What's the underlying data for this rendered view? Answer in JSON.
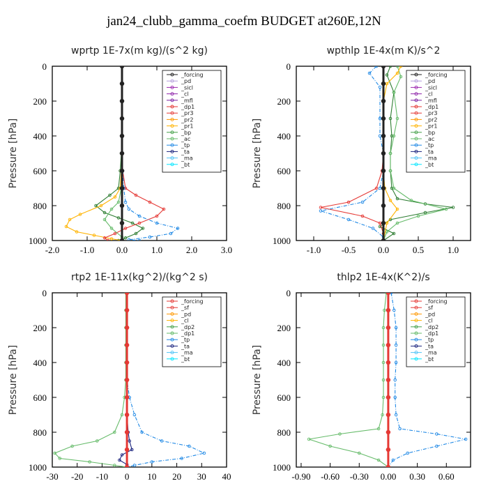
{
  "page_title": "jan24_clubb_gamma_coefm  BUDGET at260E,12N",
  "chart_data": [
    {
      "type": "line",
      "title": "wprtp  1E-7x(m kg)/(s^2 kg)",
      "ylabel": "Pressure [hPa]",
      "ylim": [
        1000,
        0
      ],
      "xlim": [
        -2.0,
        3.0
      ],
      "yticks": [
        "0",
        "200",
        "400",
        "600",
        "800",
        "1000"
      ],
      "xticks": [
        "-2.0",
        "-1.0",
        "0.0",
        "1.0",
        "2.0",
        "3.0"
      ],
      "legend": [
        "_forcing",
        "_pd",
        "_sicl",
        "_cl",
        "_mfl",
        "_dp1",
        "_pr3",
        "_pr2",
        "_pr1",
        "_bp",
        "_ac",
        "_tp",
        "_ta",
        "_ma",
        "_bt"
      ],
      "legend_colors": [
        "#222222",
        "#b39ddb",
        "#9c27b0",
        "#8e24aa",
        "#7b1fa2",
        "#e53935",
        "#e53935",
        "#ff9800",
        "#ffb300",
        "#43a047",
        "#66bb6a",
        "#1e88e5",
        "#1a237e",
        "#4fc3f7",
        "#00e5ff"
      ],
      "series": [
        {
          "name": "_bp",
          "color": "#2e7d32",
          "x": [
            0,
            0,
            0,
            0,
            0,
            -0.02,
            -0.05,
            -0.1,
            -0.35,
            -0.75,
            -0.5,
            -0.1,
            0.3,
            0.6,
            0.4,
            0.1,
            -0.1
          ],
          "y": [
            0,
            100,
            200,
            300,
            400,
            500,
            600,
            700,
            740,
            800,
            840,
            870,
            900,
            930,
            960,
            985,
            1000
          ]
        },
        {
          "name": "_pr1",
          "color": "#ffb300",
          "x": [
            0,
            0,
            0,
            0,
            0,
            0,
            -0.02,
            -0.05,
            -0.2,
            -0.6,
            -1.2,
            -1.5,
            -1.6,
            -1.3,
            -0.8,
            -0.3,
            0
          ],
          "y": [
            0,
            100,
            200,
            300,
            400,
            500,
            600,
            700,
            750,
            800,
            850,
            880,
            920,
            950,
            970,
            990,
            1000
          ]
        },
        {
          "name": "_dp1",
          "color": "#e53935",
          "x": [
            0,
            0,
            0,
            0,
            0,
            0,
            0.02,
            0.1,
            0.4,
            0.8,
            1.2,
            1.0,
            0.5,
            0.1,
            -0.2,
            -0.5,
            -0.4
          ],
          "y": [
            0,
            100,
            200,
            300,
            400,
            500,
            600,
            700,
            740,
            780,
            820,
            860,
            900,
            930,
            960,
            985,
            1000
          ]
        },
        {
          "name": "_tp",
          "color": "#1e88e5",
          "x": [
            0,
            0,
            0,
            0,
            0,
            0,
            0.02,
            0.05,
            0.1,
            0.2,
            0.5,
            1.0,
            1.6,
            1.4,
            0.8,
            0.2,
            0.5
          ],
          "y": [
            0,
            100,
            200,
            300,
            400,
            500,
            600,
            700,
            780,
            820,
            860,
            900,
            930,
            960,
            980,
            995,
            1000
          ]
        },
        {
          "name": "_ac",
          "color": "#66bb6a",
          "x": [
            0,
            0,
            0,
            0,
            0,
            0,
            0,
            -0.02,
            -0.1,
            -0.3,
            -0.5,
            -0.3,
            0,
            0
          ],
          "y": [
            0,
            100,
            200,
            300,
            400,
            500,
            600,
            700,
            780,
            820,
            880,
            930,
            980,
            1000
          ]
        },
        {
          "name": "_forcing",
          "color": "#222222",
          "x": [
            0,
            0,
            0,
            0,
            0,
            0,
            0,
            0,
            0,
            0,
            0
          ],
          "y": [
            0,
            100,
            200,
            300,
            400,
            500,
            600,
            700,
            800,
            900,
            1000
          ]
        }
      ]
    },
    {
      "type": "line",
      "title": "wpthlp  1E-4x(m K)/s^2",
      "ylabel": "Pressure [hPa]",
      "ylim": [
        1000,
        0
      ],
      "xlim": [
        -1.25,
        1.25
      ],
      "yticks": [
        "0",
        "200",
        "400",
        "600",
        "800",
        "1000"
      ],
      "xticks": [
        "-1.0",
        "-0.5",
        "0.0",
        "0.5",
        "1.0"
      ],
      "legend": [
        "_forcing",
        "_pd",
        "_sicl",
        "_cl",
        "_mfl",
        "_dp1",
        "_pr3",
        "_pr2",
        "_pr1",
        "_bp",
        "_ac",
        "_tp",
        "_ta",
        "_ma",
        "_bt"
      ],
      "legend_colors": [
        "#222222",
        "#b39ddb",
        "#9c27b0",
        "#8e24aa",
        "#7b1fa2",
        "#e53935",
        "#e53935",
        "#ff9800",
        "#ffb300",
        "#43a047",
        "#66bb6a",
        "#1e88e5",
        "#1a237e",
        "#4fc3f7",
        "#00e5ff"
      ],
      "series": [
        {
          "name": "_bp",
          "color": "#2e7d32",
          "x": [
            0.1,
            0.05,
            0.15,
            0.1,
            0.12,
            0.1,
            0.1,
            0.12,
            0.2,
            0.6,
            1.0,
            0.6,
            0.1,
            -0.05,
            0.15,
            0.0
          ],
          "y": [
            0,
            50,
            150,
            300,
            400,
            500,
            600,
            700,
            760,
            790,
            810,
            840,
            880,
            920,
            960,
            1000
          ]
        },
        {
          "name": "_dp1",
          "color": "#e53935",
          "x": [
            0,
            0,
            0,
            0,
            0,
            0,
            -0.02,
            -0.1,
            -0.5,
            -0.9,
            -0.3,
            -0.05,
            0,
            0
          ],
          "y": [
            0,
            100,
            200,
            300,
            400,
            500,
            600,
            700,
            780,
            810,
            860,
            900,
            960,
            1000
          ]
        },
        {
          "name": "_tp",
          "color": "#1e88e5",
          "x": [
            -0.1,
            -0.2,
            -0.05,
            -0.05,
            -0.05,
            0,
            0,
            -0.05,
            -0.3,
            -0.9,
            -0.5,
            -0.15,
            0,
            0
          ],
          "y": [
            0,
            40,
            120,
            300,
            400,
            500,
            600,
            700,
            780,
            830,
            880,
            930,
            980,
            1000
          ]
        },
        {
          "name": "_ac",
          "color": "#66bb6a",
          "x": [
            0.2,
            0.25,
            0.15,
            0.2,
            0.15,
            0.1,
            0.1,
            0.15,
            0.4,
            0.9,
            0.5,
            0.2,
            0.05,
            0
          ],
          "y": [
            0,
            60,
            150,
            300,
            400,
            500,
            600,
            700,
            770,
            820,
            860,
            900,
            950,
            1000
          ]
        },
        {
          "name": "_pr1",
          "color": "#ffb300",
          "x": [
            0.25,
            0.2,
            0.05,
            0,
            0,
            0,
            0,
            0.02,
            0.1,
            0.2,
            0.05,
            0
          ],
          "y": [
            0,
            40,
            100,
            200,
            300,
            500,
            600,
            700,
            770,
            820,
            900,
            1000
          ]
        },
        {
          "name": "_forcing",
          "color": "#222222",
          "x": [
            0,
            0,
            0,
            0,
            0,
            0,
            0,
            0,
            0,
            0,
            0
          ],
          "y": [
            0,
            100,
            200,
            300,
            400,
            500,
            600,
            700,
            800,
            900,
            1000
          ]
        }
      ]
    },
    {
      "type": "line",
      "title": "rtp2  1E-11x(kg^2)/(kg^2 s)",
      "ylabel": "Pressure [hPa]",
      "ylim": [
        1000,
        0
      ],
      "xlim": [
        -30,
        40
      ],
      "yticks": [
        "0",
        "200",
        "400",
        "600",
        "800",
        "1000"
      ],
      "xticks": [
        "-30",
        "-20",
        "-10",
        "0",
        "10",
        "20",
        "30",
        "40"
      ],
      "legend": [
        "_forcing",
        "_sf",
        "_pd",
        "_cl",
        "_dp2",
        "_dp1",
        "_tp",
        "_ta",
        "_ma",
        "_bt"
      ],
      "legend_colors": [
        "#e53935",
        "#e53935",
        "#ff9800",
        "#ffb300",
        "#43a047",
        "#66bb6a",
        "#1e88e5",
        "#1a237e",
        "#4fc3f7",
        "#00e5ff"
      ],
      "series": [
        {
          "name": "_dp1",
          "color": "#66bb6a",
          "x": [
            -0.5,
            -0.5,
            -0.5,
            -0.5,
            -0.5,
            -0.5,
            -1,
            -2,
            -5,
            -12,
            -22,
            -29,
            -27,
            -15,
            -5,
            0
          ],
          "y": [
            0,
            100,
            200,
            300,
            400,
            500,
            600,
            700,
            800,
            850,
            880,
            920,
            950,
            970,
            990,
            1000
          ]
        },
        {
          "name": "_tp",
          "color": "#1e88e5",
          "x": [
            0,
            0,
            0,
            0,
            0,
            0,
            1,
            3,
            6,
            14,
            25,
            31,
            22,
            10,
            3,
            0
          ],
          "y": [
            0,
            100,
            200,
            300,
            400,
            500,
            600,
            700,
            800,
            850,
            880,
            920,
            950,
            970,
            990,
            1000
          ]
        },
        {
          "name": "_ta",
          "color": "#1a237e",
          "x": [
            0,
            0,
            0,
            0,
            0,
            0,
            0,
            0,
            0.5,
            1,
            2,
            -2,
            -3,
            0,
            0
          ],
          "y": [
            0,
            100,
            200,
            300,
            400,
            500,
            600,
            700,
            800,
            850,
            900,
            930,
            960,
            985,
            1000
          ]
        },
        {
          "name": "_forcing",
          "color": "#e53935",
          "x": [
            0,
            0,
            0,
            0,
            0,
            0,
            0,
            0,
            0,
            0,
            0
          ],
          "y": [
            0,
            100,
            200,
            300,
            400,
            500,
            600,
            700,
            800,
            900,
            1000
          ]
        }
      ]
    },
    {
      "type": "line",
      "title": "thlp2  1E-4x(K^2)/s",
      "ylabel": "Pressure [hPa]",
      "ylim": [
        1000,
        0
      ],
      "xlim": [
        -0.95,
        0.85
      ],
      "yticks": [
        "0",
        "200",
        "400",
        "600",
        "800",
        "1000"
      ],
      "xticks": [
        "-0.90",
        "-0.60",
        "-0.30",
        "0.00",
        "0.30",
        "0.60"
      ],
      "legend": [
        "_forcing",
        "_sf",
        "_pd",
        "_cl",
        "_dp2",
        "_dp1",
        "_tp",
        "_ta",
        "_ma",
        "_bt"
      ],
      "legend_colors": [
        "#e53935",
        "#e53935",
        "#ff9800",
        "#ffb300",
        "#43a047",
        "#66bb6a",
        "#1e88e5",
        "#1a237e",
        "#4fc3f7",
        "#00e5ff"
      ],
      "series": [
        {
          "name": "_dp1",
          "color": "#66bb6a",
          "x": [
            -0.02,
            -0.04,
            -0.05,
            -0.05,
            -0.05,
            -0.05,
            -0.05,
            -0.06,
            -0.1,
            -0.5,
            -0.82,
            -0.6,
            -0.3,
            -0.1,
            0
          ],
          "y": [
            0,
            100,
            200,
            300,
            400,
            500,
            600,
            700,
            780,
            810,
            840,
            880,
            920,
            960,
            1000
          ]
        },
        {
          "name": "_tp",
          "color": "#1e88e5",
          "x": [
            0.03,
            0.06,
            0.08,
            0.08,
            0.08,
            0.07,
            0.07,
            0.08,
            0.12,
            0.5,
            0.8,
            0.5,
            0.2,
            0.05,
            0
          ],
          "y": [
            0,
            100,
            200,
            300,
            400,
            500,
            600,
            700,
            780,
            810,
            840,
            880,
            920,
            960,
            1000
          ]
        },
        {
          "name": "_forcing",
          "color": "#e53935",
          "x": [
            0,
            0,
            0,
            0,
            0,
            0,
            0,
            0,
            0,
            0,
            0
          ],
          "y": [
            0,
            100,
            200,
            300,
            400,
            500,
            600,
            700,
            800,
            900,
            1000
          ]
        }
      ]
    }
  ]
}
